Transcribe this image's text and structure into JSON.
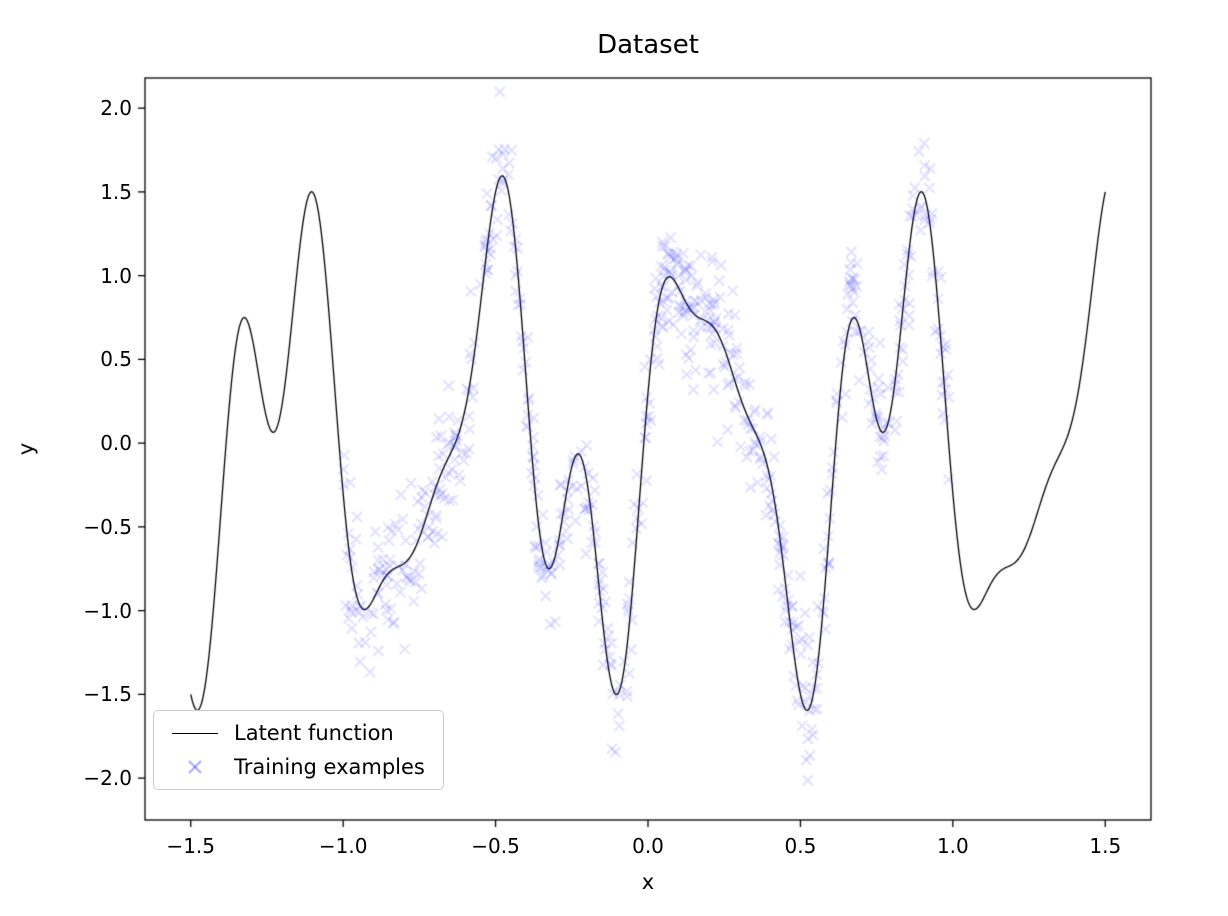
{
  "chart_data": {
    "type": "line+scatter",
    "title": "Dataset",
    "xlabel": "x",
    "ylabel": "y",
    "xlim": [
      -1.65,
      1.65
    ],
    "ylim": [
      -2.25,
      2.18
    ],
    "grid": false,
    "x_ticks": {
      "values": [
        -1.5,
        -1.0,
        -0.5,
        0.0,
        0.5,
        1.0,
        1.5
      ],
      "labels": [
        "−1.5",
        "−1.0",
        "−0.5",
        "0.0",
        "0.5",
        "1.0",
        "1.5"
      ]
    },
    "y_ticks": {
      "values": [
        -2.0,
        -1.5,
        -1.0,
        -0.5,
        0.0,
        0.5,
        1.0,
        1.5,
        2.0
      ],
      "labels": [
        "−2.0",
        "−1.5",
        "−1.0",
        "−0.5",
        "0.0",
        "0.5",
        "1.0",
        "1.5",
        "2.0"
      ]
    },
    "legend": {
      "position": "lower-left",
      "entries": [
        {
          "label": "Latent function",
          "type": "line"
        },
        {
          "label": "Training examples",
          "type": "x-marker"
        }
      ]
    },
    "series": [
      {
        "name": "Latent function",
        "kind": "line",
        "color": "#000000",
        "line_width": 1.3,
        "formula": "f(x) = sin(3πx) + 0.3·cos(9πx) + 0.5·sin(7πx)",
        "terms": [
          {
            "fn": "sin",
            "amplitude": 1.0,
            "freq_pi": 3
          },
          {
            "fn": "cos",
            "amplitude": 0.3,
            "freq_pi": 9
          },
          {
            "fn": "sin",
            "amplitude": 0.5,
            "freq_pi": 7
          }
        ],
        "x_range": [
          -1.5,
          1.5
        ],
        "samples": 601,
        "y_endpoints": [
          -1.5,
          1.5
        ],
        "y_peak_max": 1.6,
        "y_peak_min": -1.6
      },
      {
        "name": "Training examples",
        "kind": "scatter",
        "marker": "x",
        "color": "#1414ff",
        "alpha": 0.13,
        "marker_size": 5,
        "n_points": 700,
        "x_range": [
          -1.0,
          1.0
        ],
        "generated_as": "f(x) + gaussian noise",
        "noise_std": 0.2,
        "seed": 7
      }
    ]
  }
}
